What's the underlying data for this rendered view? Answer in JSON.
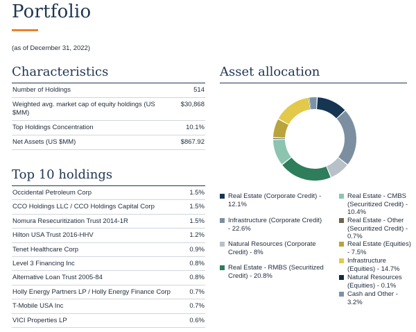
{
  "page": {
    "title": "Portfolio",
    "as_of": "(as of December 31, 2022)",
    "accent_color": "#e8832a"
  },
  "characteristics": {
    "heading": "Characteristics",
    "rows": [
      {
        "label": "Number of Holdings",
        "value": "514"
      },
      {
        "label": "Weighted avg. market cap of equity holdings (US $MM)",
        "value": "$30,868"
      },
      {
        "label": "Top Holdings Concentration",
        "value": "10.1%"
      },
      {
        "label": "Net Assets (US $MM)",
        "value": "$867.92"
      }
    ]
  },
  "top_holdings": {
    "heading": "Top 10 holdings",
    "rows": [
      {
        "label": "Occidental Petroleum Corp",
        "value": "1.5%"
      },
      {
        "label": "CCO Holdings LLC / CCO Holdings Capital Corp",
        "value": "1.5%"
      },
      {
        "label": "Nomura Resecuritization Trust 2014-1R",
        "value": "1.5%"
      },
      {
        "label": "Hilton USA Trust 2016-HHV",
        "value": "1.2%"
      },
      {
        "label": "Tenet Healthcare Corp",
        "value": "0.9%"
      },
      {
        "label": "Level 3 Financing Inc",
        "value": "0.8%"
      },
      {
        "label": "Alternative Loan Trust 2005-84",
        "value": "0.8%"
      },
      {
        "label": "Holly Energy Partners LP / Holly Energy Finance Corp",
        "value": "0.7%"
      },
      {
        "label": "T-Mobile USA Inc",
        "value": "0.7%"
      },
      {
        "label": "VICI Properties LP",
        "value": "0.6%"
      }
    ]
  },
  "chart_data": {
    "type": "pie",
    "title": "Asset allocation",
    "donut": true,
    "series": [
      {
        "legend": "Real Estate (Corporate Credit) - 12.1%",
        "value": 12.1,
        "color": "#163553"
      },
      {
        "legend": "Infrastructure (Corporate Credit) - 22.6%",
        "value": 22.6,
        "color": "#7c8fa1"
      },
      {
        "legend": "Natural Resources (Corporate Credit) - 8%",
        "value": 8,
        "color": "#b8c0c8"
      },
      {
        "legend": "Real Estate - RMBS (Securitized Credit) - 20.8%",
        "value": 20.8,
        "color": "#2e7d5b"
      },
      {
        "legend": "Real Estate - CMBS (Securitized Credit) - 10.4%",
        "value": 10.4,
        "color": "#8cc4b0"
      },
      {
        "legend": "Real Estate - Other (Securitized Credit) - 0.7%",
        "value": 0.7,
        "color": "#6e6450"
      },
      {
        "legend": "Real Estate (Equities) - 7.5%",
        "value": 7.5,
        "color": "#b9a33c"
      },
      {
        "legend": "Infrastructure (Equities) - 14.7%",
        "value": 14.7,
        "color": "#e2c94a"
      },
      {
        "legend": "Natural Resources (Equities) - 0.1%",
        "value": 0.1,
        "color": "#0f2a40"
      },
      {
        "legend": "Cash and Other - 3.2%",
        "value": 3.2,
        "color": "#7b93a8"
      }
    ]
  }
}
